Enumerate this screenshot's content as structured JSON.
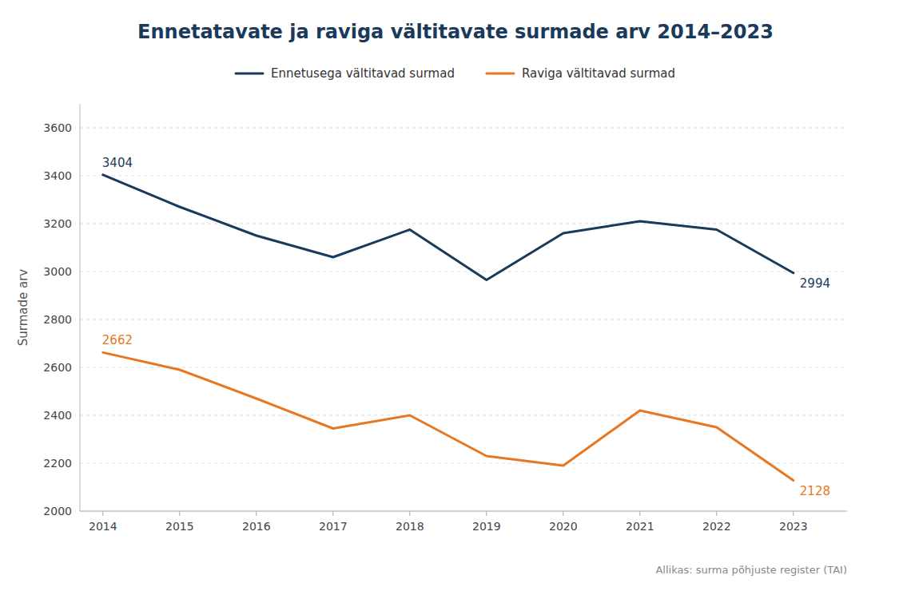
{
  "chart_data": {
    "type": "line",
    "title": "Ennetatavate ja raviga vältitavate surmade arv 2014–2023",
    "y_label": "Surmade arv",
    "source": "Allikas: surma põhjuste register (TAI)",
    "x": [
      2014,
      2015,
      2016,
      2017,
      2018,
      2019,
      2020,
      2021,
      2022,
      2023
    ],
    "xlim": [
      2013.7,
      2023.7
    ],
    "xticks": [
      2014,
      2015,
      2016,
      2017,
      2018,
      2019,
      2020,
      2021,
      2022,
      2023
    ],
    "series": [
      {
        "name": "Ennetusega vältitavad surmad",
        "color": "#1a3a5c",
        "values": [
          3404,
          3270,
          3150,
          3060,
          3175,
          2965,
          3160,
          3210,
          3175,
          2994
        ]
      },
      {
        "name": "Raviga vältitavad surmad",
        "color": "#e87722",
        "values": [
          2662,
          2590,
          2470,
          2345,
          2400,
          2230,
          2190,
          2420,
          2350,
          2128
        ]
      }
    ],
    "annotations": [
      {
        "text": "3404",
        "x": 2014,
        "y": 3404,
        "color": "#1a3a5c"
      },
      {
        "text": "2994",
        "x": 2023,
        "y": 2994,
        "color": "#1a3a5c"
      },
      {
        "text": "2662",
        "x": 2014,
        "y": 2662,
        "color": "#e87722"
      },
      {
        "text": "2128",
        "x": 2023,
        "y": 2128,
        "color": "#e87722"
      }
    ],
    "ylim": [
      2000,
      3700
    ],
    "yticks": [
      2000,
      2200,
      2400,
      2600,
      2800,
      3000,
      3200,
      3400,
      3600
    ],
    "grid": true,
    "legend": "top"
  }
}
